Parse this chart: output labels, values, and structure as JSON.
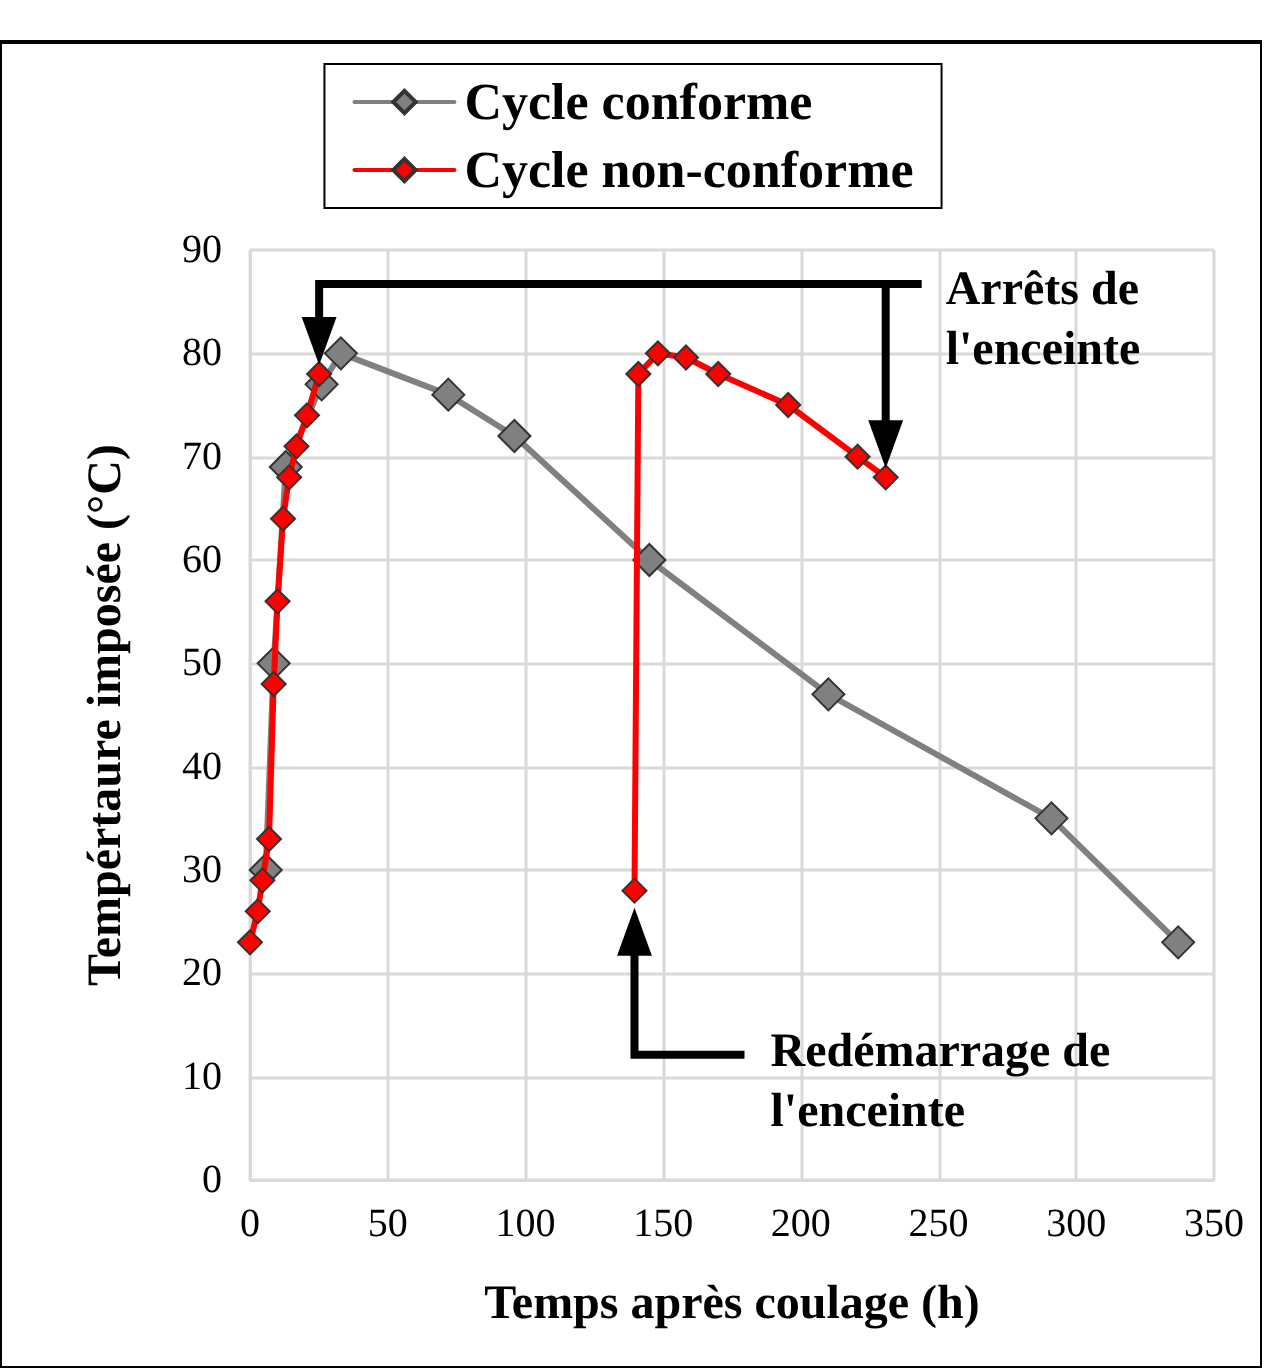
{
  "chart_data": {
    "type": "line",
    "xlabel": "Temps après coulage (h)",
    "ylabel": "Tempértaure imposée (°C)",
    "xlim": [
      0,
      350
    ],
    "xticks": [
      0,
      50,
      100,
      150,
      200,
      250,
      300,
      350
    ],
    "ylim": [
      0,
      90
    ],
    "yticks": [
      0,
      10,
      20,
      30,
      40,
      50,
      60,
      70,
      80,
      90
    ],
    "grid": true,
    "legend": "top",
    "marker": "diamond",
    "line_style": "solid",
    "series": [
      {
        "name": "Cycle conforme",
        "color": "#808080",
        "x": [
          5.7,
          8.6,
          13,
          26,
          33,
          72,
          96,
          145,
          210,
          291,
          337
        ],
        "values": [
          30,
          50,
          69,
          77,
          80,
          76,
          72,
          60,
          47,
          35,
          23
        ]
      },
      {
        "name": "Cycle non-conforme",
        "color": "#ff0000",
        "x": [
          0,
          2.8,
          4.5,
          6.9,
          8.6,
          10,
          12,
          14.2,
          16.9,
          20.7,
          25.1
        ],
        "values": [
          23,
          26,
          29,
          33,
          48,
          56,
          64,
          68,
          71,
          74,
          78
        ]
      },
      {
        "color": "#ff0000",
        "x": [
          139.6,
          141,
          148.1,
          158.3,
          170,
          195.4,
          220.6,
          230.8
        ],
        "values": [
          28,
          78,
          80,
          79.6,
          78,
          75,
          70,
          68
        ]
      }
    ],
    "annotations": [
      "Arrêts de l'enceinte",
      "Redémarrage de l'enceinte"
    ]
  }
}
